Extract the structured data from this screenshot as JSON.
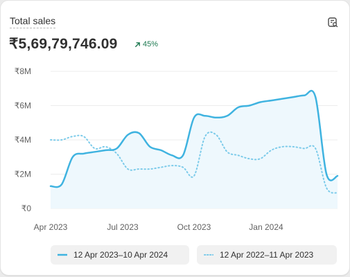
{
  "card": {
    "title": "Total sales",
    "total": "₹5,69,79,746.09",
    "change": "45%",
    "export_icon": "chart-export-icon",
    "change_icon": "arrow-up-right-icon"
  },
  "colors": {
    "current": "#3fb3e0",
    "previous": "#7ccbea",
    "area": "#eef8fd",
    "positive": "#1f7a52",
    "grid": "#ececec",
    "axis_text": "#616161"
  },
  "chart_data": {
    "type": "line",
    "y_ticks": [
      "₹0",
      "₹2M",
      "₹4M",
      "₹6M",
      "₹8M"
    ],
    "x_ticks": [
      "Apr 2023",
      "Jul 2023",
      "Oct 2023",
      "Jan 2024"
    ],
    "ylim": [
      0,
      8
    ],
    "unit": "M",
    "grid": true,
    "legend_position": "bottom",
    "series": [
      {
        "name": "12 Apr 2023–10 Apr 2024",
        "style": "solid",
        "values": [
          1.3,
          1.4,
          3.0,
          3.2,
          3.3,
          3.4,
          3.5,
          4.3,
          4.4,
          3.6,
          3.4,
          3.1,
          3.1,
          5.3,
          5.4,
          5.3,
          5.4,
          5.9,
          6.0,
          6.2,
          6.3,
          6.4,
          6.5,
          6.6,
          6.5,
          2.0,
          1.9
        ]
      },
      {
        "name": "12 Apr 2022–11 Apr 2023",
        "style": "dotted",
        "values": [
          4.0,
          4.0,
          4.2,
          4.2,
          3.5,
          3.6,
          3.2,
          2.3,
          2.3,
          2.3,
          2.4,
          2.5,
          2.4,
          1.9,
          4.2,
          4.3,
          3.3,
          3.1,
          2.9,
          2.9,
          3.4,
          3.6,
          3.6,
          3.5,
          3.5,
          1.2,
          0.9
        ]
      }
    ]
  }
}
